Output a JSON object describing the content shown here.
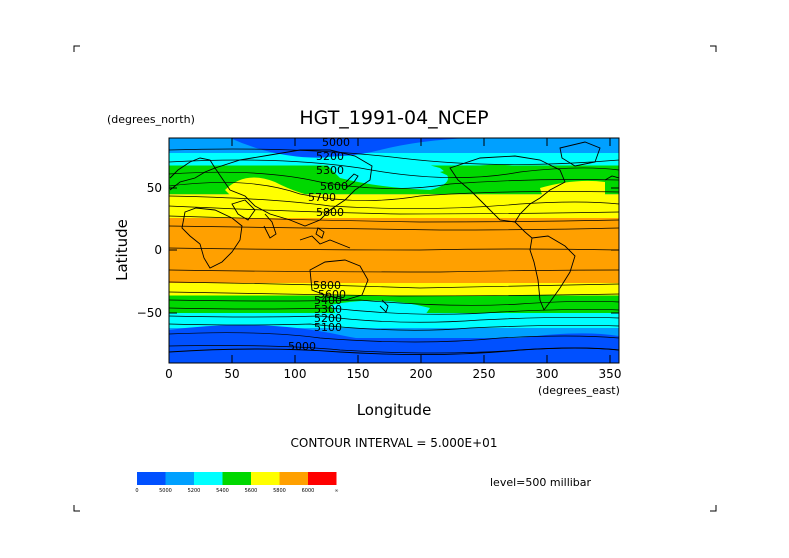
{
  "title": "HGT_1991-04_NCEP",
  "units_north": "(degrees_north)",
  "units_east": "(degrees_east)",
  "xlabel": "Longitude",
  "ylabel": "Latitude",
  "x_ticks": [
    "0",
    "50",
    "100",
    "150",
    "200",
    "250",
    "300",
    "350"
  ],
  "y_ticks": [
    "50",
    "0",
    "−50"
  ],
  "contour_interval": "CONTOUR INTERVAL = 5.000E+01",
  "level": "level=500 millibar",
  "contour_labels": [
    "5000",
    "5100",
    "5200",
    "5300",
    "5400",
    "5500",
    "5600",
    "5700",
    "5800",
    "5900"
  ],
  "colorbar": {
    "labels": [
      "0",
      "5000",
      "5200",
      "5400",
      "5600",
      "5800",
      "6000",
      "∞"
    ],
    "colors": [
      "#0050ff",
      "#00a0ff",
      "#00ffff",
      "#00d800",
      "#ffff00",
      "#ffa000",
      "#ff0000"
    ]
  },
  "map_data": {
    "xlim": [
      0,
      357.5
    ],
    "ylim": [
      -90,
      90
    ],
    "bands": [
      {
        "lat_from": 90,
        "lat_to": 78,
        "color": "#00a0ff"
      },
      {
        "lat_from": 78,
        "lat_to": 68,
        "color": "#00ffff"
      },
      {
        "lat_from": 68,
        "lat_to": 56,
        "color": "#00d800"
      },
      {
        "lat_from": 56,
        "lat_to": 45,
        "color": "#00d800"
      },
      {
        "lat_from": 45,
        "lat_to": 26,
        "color": "#ffff00"
      },
      {
        "lat_from": 26,
        "lat_to": -26,
        "color": "#ffa000"
      },
      {
        "lat_from": -26,
        "lat_to": -36,
        "color": "#ffff00"
      },
      {
        "lat_from": -36,
        "lat_to": -50,
        "color": "#00d800"
      },
      {
        "lat_from": -50,
        "lat_to": -62,
        "color": "#00ffff"
      },
      {
        "lat_from": -62,
        "lat_to": -70,
        "color": "#00a0ff"
      },
      {
        "lat_from": -70,
        "lat_to": -90,
        "color": "#0050ff"
      }
    ]
  }
}
